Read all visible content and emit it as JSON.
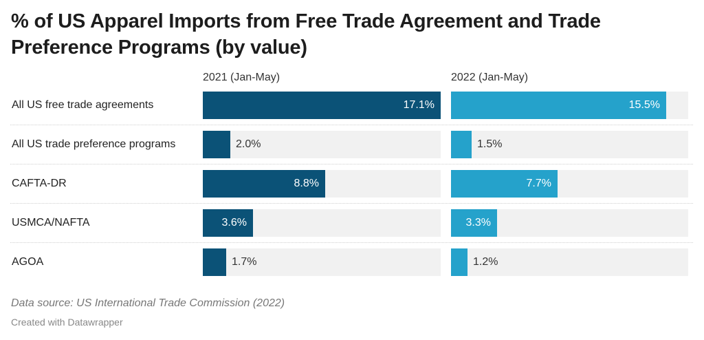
{
  "chart_data": {
    "type": "bar",
    "title": "% of US Apparel Imports from Free Trade Agreement and Trade Preference Programs (by value)",
    "categories": [
      "All US free trade agreements",
      "All US trade preference programs",
      "CAFTA-DR",
      "USMCA/NAFTA",
      "AGOA"
    ],
    "series": [
      {
        "name": "2021 (Jan-May)",
        "color": "#0b5277",
        "values": [
          17.1,
          2.0,
          8.8,
          3.6,
          1.7
        ],
        "labels": [
          "17.1%",
          "2.0%",
          "8.8%",
          "3.6%",
          "1.7%"
        ]
      },
      {
        "name": "2022 (Jan-May)",
        "color": "#25a2cb",
        "values": [
          15.5,
          1.5,
          7.7,
          3.3,
          1.2
        ],
        "labels": [
          "15.5%",
          "1.5%",
          "7.7%",
          "3.3%",
          "1.2%"
        ]
      }
    ],
    "xlim": [
      0,
      17.1
    ],
    "source": "Data source: US International Trade Commission (2022)",
    "credit": "Created with Datawrapper"
  }
}
